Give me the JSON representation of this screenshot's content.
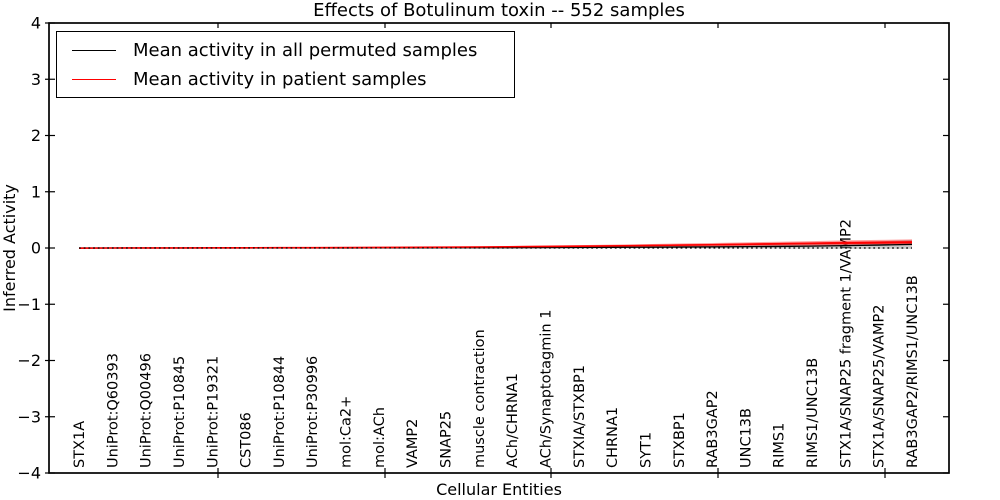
{
  "figure": {
    "title": "Effects of Botulinum toxin -- 552 samples",
    "xlabel": "Cellular Entities",
    "ylabel": "Inferred Activity"
  },
  "legend": {
    "position": "upper left",
    "entries": [
      {
        "label": "Mean activity in all permuted samples",
        "color": "#000000"
      },
      {
        "label": "Mean activity in patient samples",
        "color": "#ff0000"
      }
    ]
  },
  "chart_data": {
    "type": "line",
    "title": "Effects of Botulinum toxin -- 552 samples",
    "xlabel": "Cellular Entities",
    "ylabel": "Inferred Activity",
    "ylim": [
      -4,
      4
    ],
    "yticks": [
      4,
      3,
      2,
      1,
      0,
      -1,
      -2,
      -3,
      -4
    ],
    "grid": false,
    "legend_position": "upper left",
    "categories": [
      "STX1A",
      "UniProt:Q60393",
      "UniProt:Q00496",
      "UniProt:P10845",
      "UniProt:P19321",
      "CST086",
      "UniProt:P10844",
      "UniProt:P30996",
      "mol:Ca2+",
      "mol:ACh",
      "VAMP2",
      "SNAP25",
      "muscle contraction",
      "ACh/CHRNA1",
      "ACh/Synaptotagmin 1",
      "STXIA/STXBP1",
      "CHRNA1",
      "SYT1",
      "STXBP1",
      "RAB3GAP2",
      "UNC13B",
      "RIMS1",
      "RIMS1/UNC13B",
      "STX1A/SNAP25 fragment 1/VAMP2",
      "STX1A/SNAP25/VAMP2",
      "RAB3GAP2/RIMS1/UNC13B"
    ],
    "series": [
      {
        "name": "Mean activity in all permuted samples",
        "color": "#000000",
        "style": "solid",
        "values": [
          0,
          0,
          0,
          0,
          0,
          0,
          0,
          0,
          0,
          0.002,
          0.003,
          0.004,
          0.005,
          0.006,
          0.008,
          0.01,
          0.012,
          0.014,
          0.017,
          0.02,
          0.024,
          0.028,
          0.034,
          0.042,
          0.052,
          0.065
        ]
      },
      {
        "name": "Mean activity in patient samples",
        "color": "#ff0000",
        "style": "solid",
        "values": [
          -0.004,
          0,
          0.002,
          0.002,
          0.003,
          0.004,
          0.005,
          0.006,
          0.008,
          0.01,
          0.012,
          0.015,
          0.018,
          0.022,
          0.027,
          0.032,
          0.038,
          0.044,
          0.051,
          0.058,
          0.066,
          0.074,
          0.082,
          0.09,
          0.096,
          0.102
        ]
      },
      {
        "name": "zero reference (dotted)",
        "color": "#000000",
        "style": "dotted",
        "values": [
          0,
          0,
          0,
          0,
          0,
          0,
          0,
          0,
          0,
          0,
          0,
          0,
          0,
          0,
          0,
          0,
          0,
          0,
          0,
          0,
          0,
          0,
          0,
          0,
          0,
          0
        ]
      }
    ],
    "bands": [
      {
        "name": "permuted samples spread",
        "series": 0,
        "color": "#9a9a9a",
        "opacity": 0.5,
        "halfwidth": [
          0.002,
          0.002,
          0.002,
          0.003,
          0.003,
          0.003,
          0.004,
          0.004,
          0.005,
          0.006,
          0.007,
          0.008,
          0.009,
          0.011,
          0.013,
          0.015,
          0.018,
          0.021,
          0.024,
          0.028,
          0.032,
          0.037,
          0.045,
          0.055,
          0.066,
          0.08
        ]
      },
      {
        "name": "patient samples spread",
        "series": 1,
        "color": "#ff0000",
        "opacity": 0.38,
        "halfwidth": [
          0.004,
          0.004,
          0.004,
          0.005,
          0.005,
          0.006,
          0.006,
          0.007,
          0.008,
          0.009,
          0.01,
          0.012,
          0.013,
          0.015,
          0.017,
          0.019,
          0.022,
          0.025,
          0.028,
          0.031,
          0.034,
          0.038,
          0.041,
          0.045,
          0.048,
          0.052
        ]
      }
    ]
  }
}
